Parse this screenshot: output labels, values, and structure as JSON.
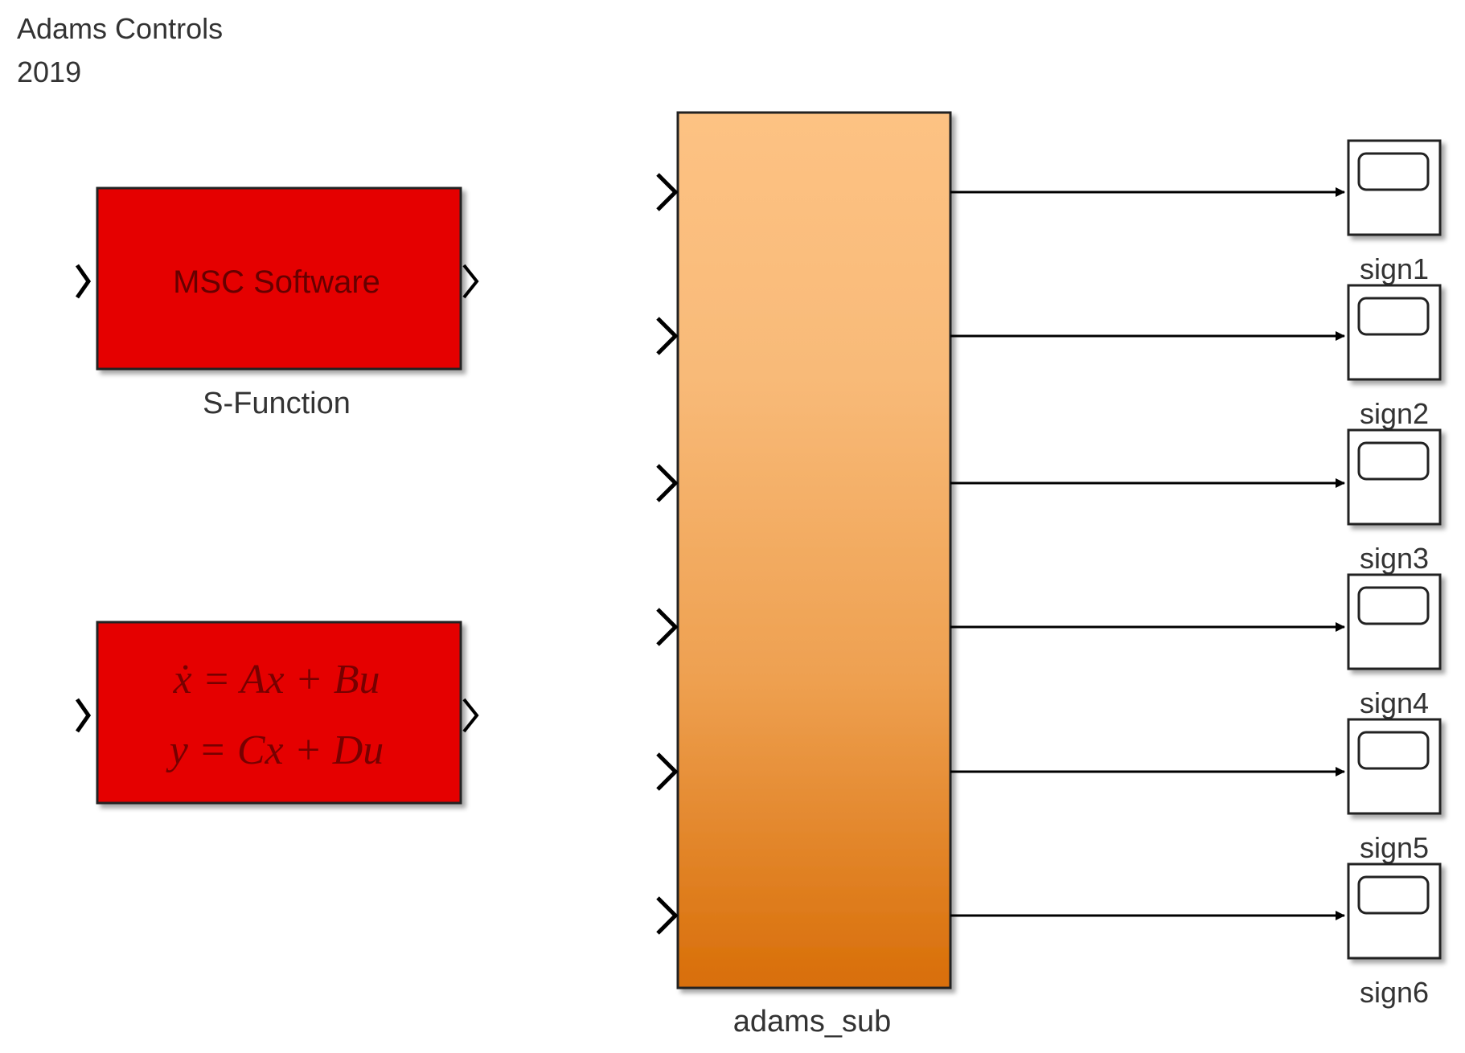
{
  "header": {
    "title": [
      "Adams Controls",
      "2019"
    ]
  },
  "blocks": {
    "s_function": {
      "text": "MSC Software",
      "label": "S-Function"
    },
    "state_space": {
      "equations": [
        "ẋ = Ax + Bu",
        "y = Cx + Du"
      ]
    },
    "subsystem": {
      "label": "adams_sub"
    }
  },
  "scopes": [
    "sign1",
    "sign2",
    "sign3",
    "sign4",
    "sign5",
    "sign6"
  ]
}
